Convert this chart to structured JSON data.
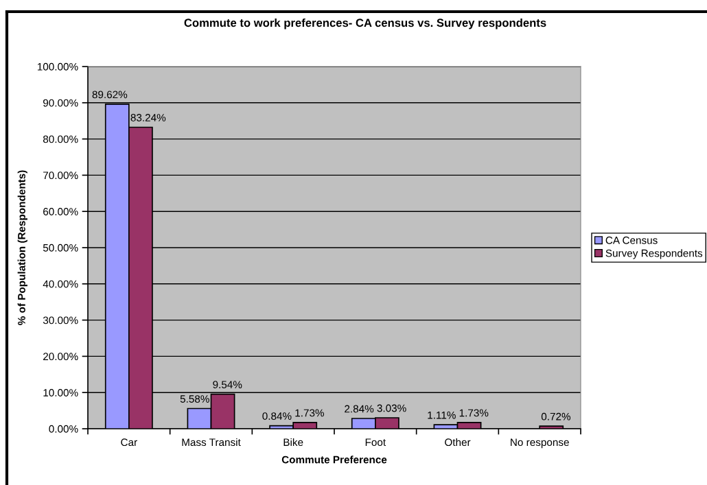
{
  "chart_data": {
    "type": "bar",
    "title": "Commute to work preferences- CA census vs. Survey respondents",
    "xlabel": "Commute Preference",
    "ylabel": "% of Population (Respondents)",
    "categories": [
      "Car",
      "Mass Transit",
      "Bike",
      "Foot",
      "Other",
      "No response"
    ],
    "series": [
      {
        "name": "CA Census",
        "color": "#9999ff",
        "values": [
          89.62,
          5.58,
          0.84,
          2.84,
          1.11,
          null
        ],
        "value_labels": [
          "89.62%",
          "5.58%",
          "0.84%",
          "2.84%",
          "1.11%",
          null
        ]
      },
      {
        "name": "Survey Respondents",
        "color": "#993366",
        "values": [
          83.24,
          9.54,
          1.73,
          3.03,
          1.73,
          0.72
        ],
        "value_labels": [
          "83.24%",
          "9.54%",
          "1.73%",
          "3.03%",
          "1.73%",
          "0.72%"
        ]
      }
    ],
    "ylim": [
      0,
      100
    ],
    "yticks": [
      {
        "value": 0,
        "label": "0.00%"
      },
      {
        "value": 10,
        "label": "10.00%"
      },
      {
        "value": 20,
        "label": "20.00%"
      },
      {
        "value": 30,
        "label": "30.00%"
      },
      {
        "value": 40,
        "label": "40.00%"
      },
      {
        "value": 50,
        "label": "50.00%"
      },
      {
        "value": 60,
        "label": "60.00%"
      },
      {
        "value": 70,
        "label": "70.00%"
      },
      {
        "value": 80,
        "label": "80.00%"
      },
      {
        "value": 90,
        "label": "90.00%"
      },
      {
        "value": 100,
        "label": "100.00%"
      }
    ],
    "grid": "y",
    "legend": "right"
  }
}
